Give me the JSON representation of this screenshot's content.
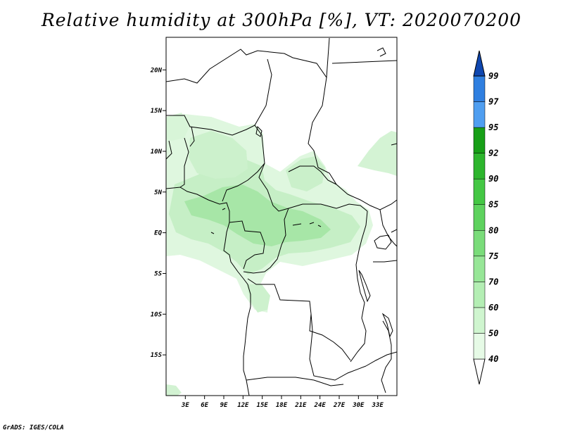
{
  "title": "Relative humidity at 300hPa [%], VT: 2020070200",
  "credit": "GrADS: IGES/COLA",
  "map": {
    "lon_range": [
      0,
      36
    ],
    "lat_range": [
      -20,
      24
    ],
    "lat_ticks": [
      {
        "value": 20,
        "label": "20N"
      },
      {
        "value": 15,
        "label": "15N"
      },
      {
        "value": 10,
        "label": "10N"
      },
      {
        "value": 5,
        "label": "5N"
      },
      {
        "value": 0,
        "label": "EQ"
      },
      {
        "value": -5,
        "label": "5S"
      },
      {
        "value": -10,
        "label": "10S"
      },
      {
        "value": -15,
        "label": "15S"
      }
    ],
    "lon_ticks": [
      {
        "value": 3,
        "label": "3E"
      },
      {
        "value": 6,
        "label": "6E"
      },
      {
        "value": 9,
        "label": "9E"
      },
      {
        "value": 12,
        "label": "12E"
      },
      {
        "value": 15,
        "label": "15E"
      },
      {
        "value": 18,
        "label": "18E"
      },
      {
        "value": 21,
        "label": "21E"
      },
      {
        "value": 24,
        "label": "24E"
      },
      {
        "value": 27,
        "label": "27E"
      },
      {
        "value": 30,
        "label": "30E"
      },
      {
        "value": 33,
        "label": "33E"
      }
    ]
  },
  "colorbar": {
    "levels": [
      "40",
      "50",
      "60",
      "70",
      "75",
      "80",
      "85",
      "90",
      "92",
      "95",
      "97",
      "99"
    ],
    "colors": [
      "#e6fae6",
      "#cff5cf",
      "#b4eeb4",
      "#97e697",
      "#7adc7a",
      "#5ed25e",
      "#44c744",
      "#2db52d",
      "#179f17",
      "#4f9ef0",
      "#2f7fe0",
      "#1a5fc8",
      "#0f47b0"
    ]
  },
  "colors": {
    "light": "#e2f8e2",
    "mid": "#c2efc2",
    "dark": "#9fe49f",
    "coast": "#000000"
  }
}
